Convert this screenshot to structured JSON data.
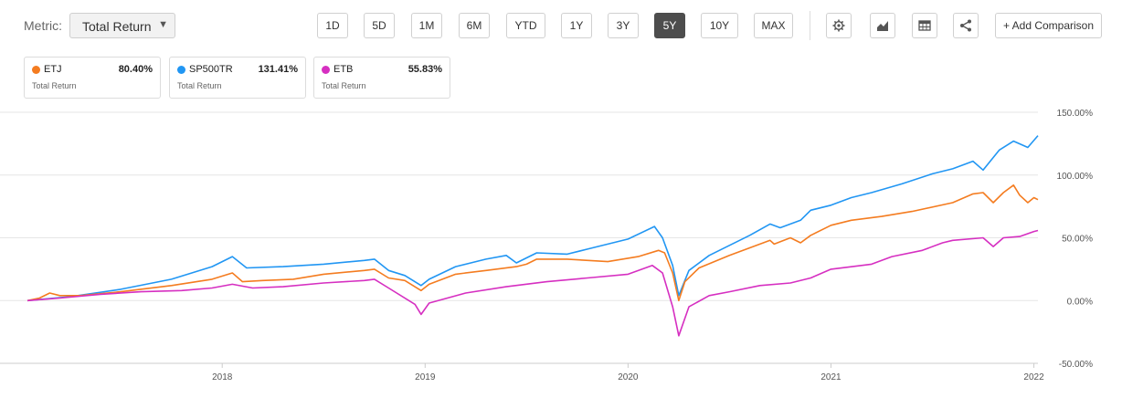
{
  "toolbar": {
    "metric_label": "Metric:",
    "metric_value": "Total Return",
    "ranges": [
      "1D",
      "5D",
      "1M",
      "6M",
      "YTD",
      "1Y",
      "3Y",
      "5Y",
      "10Y",
      "MAX"
    ],
    "active_range": "5Y",
    "tools": [
      "gear-icon",
      "chart-type-icon",
      "table-icon",
      "share-icon"
    ],
    "add_comparison": "+ Add Comparison"
  },
  "legend": [
    {
      "name": "ETJ",
      "value": "80.40%",
      "sub": "Total Return",
      "color": "#f47c20"
    },
    {
      "name": "SP500TR",
      "value": "131.41%",
      "sub": "Total Return",
      "color": "#2196f3"
    },
    {
      "name": "ETB",
      "value": "55.83%",
      "sub": "Total Return",
      "color": "#d62fc1"
    }
  ],
  "chart_data": {
    "type": "line",
    "y_tick_labels": [
      "150.00%",
      "100.00%",
      "50.00%",
      "0.00%",
      "-50.00%"
    ],
    "y_ticks": [
      150,
      100,
      50,
      0,
      -50
    ],
    "x_tick_labels": [
      "2018",
      "2019",
      "2020",
      "2021",
      "2022"
    ],
    "x_ticks": [
      2018,
      2019,
      2020,
      2021,
      2022
    ],
    "xlim": [
      2017.04,
      2022.02
    ],
    "ylim": [
      -50,
      150
    ],
    "grid": "horizontal",
    "y_axis_position": "right",
    "series": [
      {
        "name": "SP500TR",
        "color": "#2196f3",
        "points": [
          [
            2017.04,
            0
          ],
          [
            2017.25,
            3
          ],
          [
            2017.5,
            9
          ],
          [
            2017.75,
            17
          ],
          [
            2017.95,
            27
          ],
          [
            2018.05,
            35
          ],
          [
            2018.12,
            26
          ],
          [
            2018.3,
            27
          ],
          [
            2018.5,
            29
          ],
          [
            2018.7,
            32
          ],
          [
            2018.75,
            33
          ],
          [
            2018.82,
            24
          ],
          [
            2018.9,
            20
          ],
          [
            2018.98,
            12
          ],
          [
            2019.02,
            17
          ],
          [
            2019.15,
            27
          ],
          [
            2019.3,
            33
          ],
          [
            2019.4,
            36
          ],
          [
            2019.45,
            30
          ],
          [
            2019.55,
            38
          ],
          [
            2019.7,
            37
          ],
          [
            2019.8,
            41
          ],
          [
            2019.9,
            45
          ],
          [
            2020.0,
            49
          ],
          [
            2020.13,
            59
          ],
          [
            2020.17,
            50
          ],
          [
            2020.22,
            28
          ],
          [
            2020.25,
            4
          ],
          [
            2020.3,
            24
          ],
          [
            2020.4,
            36
          ],
          [
            2020.5,
            44
          ],
          [
            2020.6,
            52
          ],
          [
            2020.7,
            61
          ],
          [
            2020.75,
            58
          ],
          [
            2020.85,
            64
          ],
          [
            2020.9,
            72
          ],
          [
            2021.0,
            76
          ],
          [
            2021.1,
            82
          ],
          [
            2021.2,
            86
          ],
          [
            2021.35,
            93
          ],
          [
            2021.5,
            101
          ],
          [
            2021.6,
            105
          ],
          [
            2021.7,
            111
          ],
          [
            2021.75,
            104
          ],
          [
            2021.83,
            120
          ],
          [
            2021.9,
            127
          ],
          [
            2021.97,
            122
          ],
          [
            2022.02,
            131.41
          ]
        ]
      },
      {
        "name": "ETJ",
        "color": "#f47c20",
        "points": [
          [
            2017.04,
            0
          ],
          [
            2017.1,
            2
          ],
          [
            2017.15,
            6
          ],
          [
            2017.2,
            4
          ],
          [
            2017.3,
            4
          ],
          [
            2017.5,
            7
          ],
          [
            2017.75,
            12
          ],
          [
            2017.95,
            17
          ],
          [
            2018.05,
            22
          ],
          [
            2018.1,
            15
          ],
          [
            2018.2,
            16
          ],
          [
            2018.35,
            17
          ],
          [
            2018.5,
            21
          ],
          [
            2018.7,
            24
          ],
          [
            2018.75,
            25
          ],
          [
            2018.82,
            18
          ],
          [
            2018.9,
            16
          ],
          [
            2018.98,
            8
          ],
          [
            2019.02,
            13
          ],
          [
            2019.15,
            21
          ],
          [
            2019.3,
            24
          ],
          [
            2019.45,
            27
          ],
          [
            2019.5,
            29
          ],
          [
            2019.55,
            33
          ],
          [
            2019.7,
            33
          ],
          [
            2019.9,
            31
          ],
          [
            2020.05,
            35
          ],
          [
            2020.15,
            40
          ],
          [
            2020.18,
            38
          ],
          [
            2020.22,
            22
          ],
          [
            2020.25,
            0
          ],
          [
            2020.28,
            15
          ],
          [
            2020.35,
            26
          ],
          [
            2020.5,
            36
          ],
          [
            2020.6,
            42
          ],
          [
            2020.7,
            48
          ],
          [
            2020.72,
            45
          ],
          [
            2020.8,
            50
          ],
          [
            2020.85,
            46
          ],
          [
            2020.9,
            52
          ],
          [
            2021.0,
            60
          ],
          [
            2021.1,
            64
          ],
          [
            2021.25,
            67
          ],
          [
            2021.4,
            71
          ],
          [
            2021.6,
            78
          ],
          [
            2021.7,
            85
          ],
          [
            2021.75,
            86
          ],
          [
            2021.8,
            78
          ],
          [
            2021.85,
            86
          ],
          [
            2021.9,
            92
          ],
          [
            2021.93,
            84
          ],
          [
            2021.97,
            78
          ],
          [
            2022.0,
            82
          ],
          [
            2022.02,
            80.4
          ]
        ]
      },
      {
        "name": "ETB",
        "color": "#d62fc1",
        "points": [
          [
            2017.04,
            0
          ],
          [
            2017.2,
            2
          ],
          [
            2017.4,
            5
          ],
          [
            2017.6,
            7
          ],
          [
            2017.8,
            8
          ],
          [
            2017.95,
            10
          ],
          [
            2018.05,
            13
          ],
          [
            2018.15,
            10
          ],
          [
            2018.3,
            11
          ],
          [
            2018.5,
            14
          ],
          [
            2018.7,
            16
          ],
          [
            2018.75,
            17
          ],
          [
            2018.82,
            10
          ],
          [
            2018.95,
            -3
          ],
          [
            2018.98,
            -11
          ],
          [
            2019.02,
            -2
          ],
          [
            2019.2,
            6
          ],
          [
            2019.4,
            11
          ],
          [
            2019.6,
            15
          ],
          [
            2019.8,
            18
          ],
          [
            2020.0,
            21
          ],
          [
            2020.12,
            28
          ],
          [
            2020.17,
            22
          ],
          [
            2020.22,
            -5
          ],
          [
            2020.25,
            -28
          ],
          [
            2020.3,
            -5
          ],
          [
            2020.4,
            4
          ],
          [
            2020.5,
            7
          ],
          [
            2020.65,
            12
          ],
          [
            2020.8,
            14
          ],
          [
            2020.9,
            18
          ],
          [
            2021.0,
            25
          ],
          [
            2021.2,
            29
          ],
          [
            2021.3,
            35
          ],
          [
            2021.45,
            40
          ],
          [
            2021.55,
            46
          ],
          [
            2021.6,
            48
          ],
          [
            2021.75,
            50
          ],
          [
            2021.8,
            43
          ],
          [
            2021.85,
            50
          ],
          [
            2021.93,
            51
          ],
          [
            2022.0,
            55
          ],
          [
            2022.02,
            55.83
          ]
        ]
      }
    ]
  }
}
